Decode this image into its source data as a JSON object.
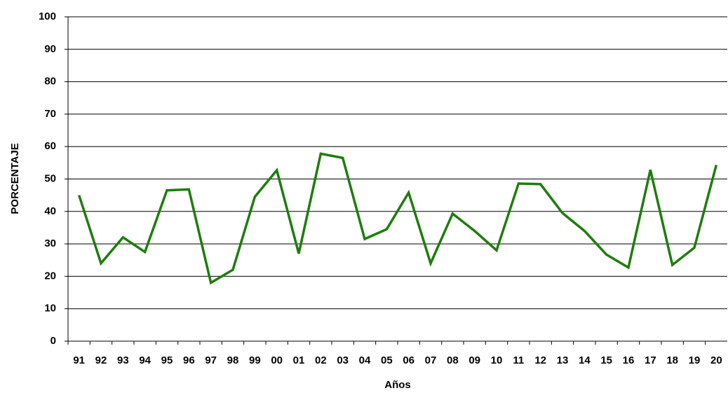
{
  "chart_data": {
    "type": "line",
    "x_label": "Años",
    "y_label": "PORCENTAJE",
    "categories": [
      "91",
      "92",
      "93",
      "94",
      "95",
      "96",
      "97",
      "98",
      "99",
      "00",
      "01",
      "02",
      "03",
      "04",
      "05",
      "06",
      "07",
      "08",
      "09",
      "10",
      "11",
      "12",
      "13",
      "14",
      "15",
      "16",
      "17",
      "18",
      "19",
      "20"
    ],
    "series": [
      {
        "color": "#1e7d0d",
        "values": [
          45,
          24,
          32,
          27.5,
          46.5,
          46.8,
          18,
          22,
          44.5,
          52.7,
          27,
          57.8,
          56.5,
          31.5,
          34.5,
          45.8,
          24,
          39.3,
          34,
          28,
          48.6,
          48.4,
          39.5,
          34,
          26.7,
          22.7,
          52.8,
          23.5,
          28.8,
          54.3
        ]
      }
    ],
    "ylim": [
      0,
      100
    ],
    "yticks": [
      0,
      10,
      20,
      30,
      40,
      50,
      60,
      70,
      80,
      90,
      100
    ],
    "grid": true
  }
}
